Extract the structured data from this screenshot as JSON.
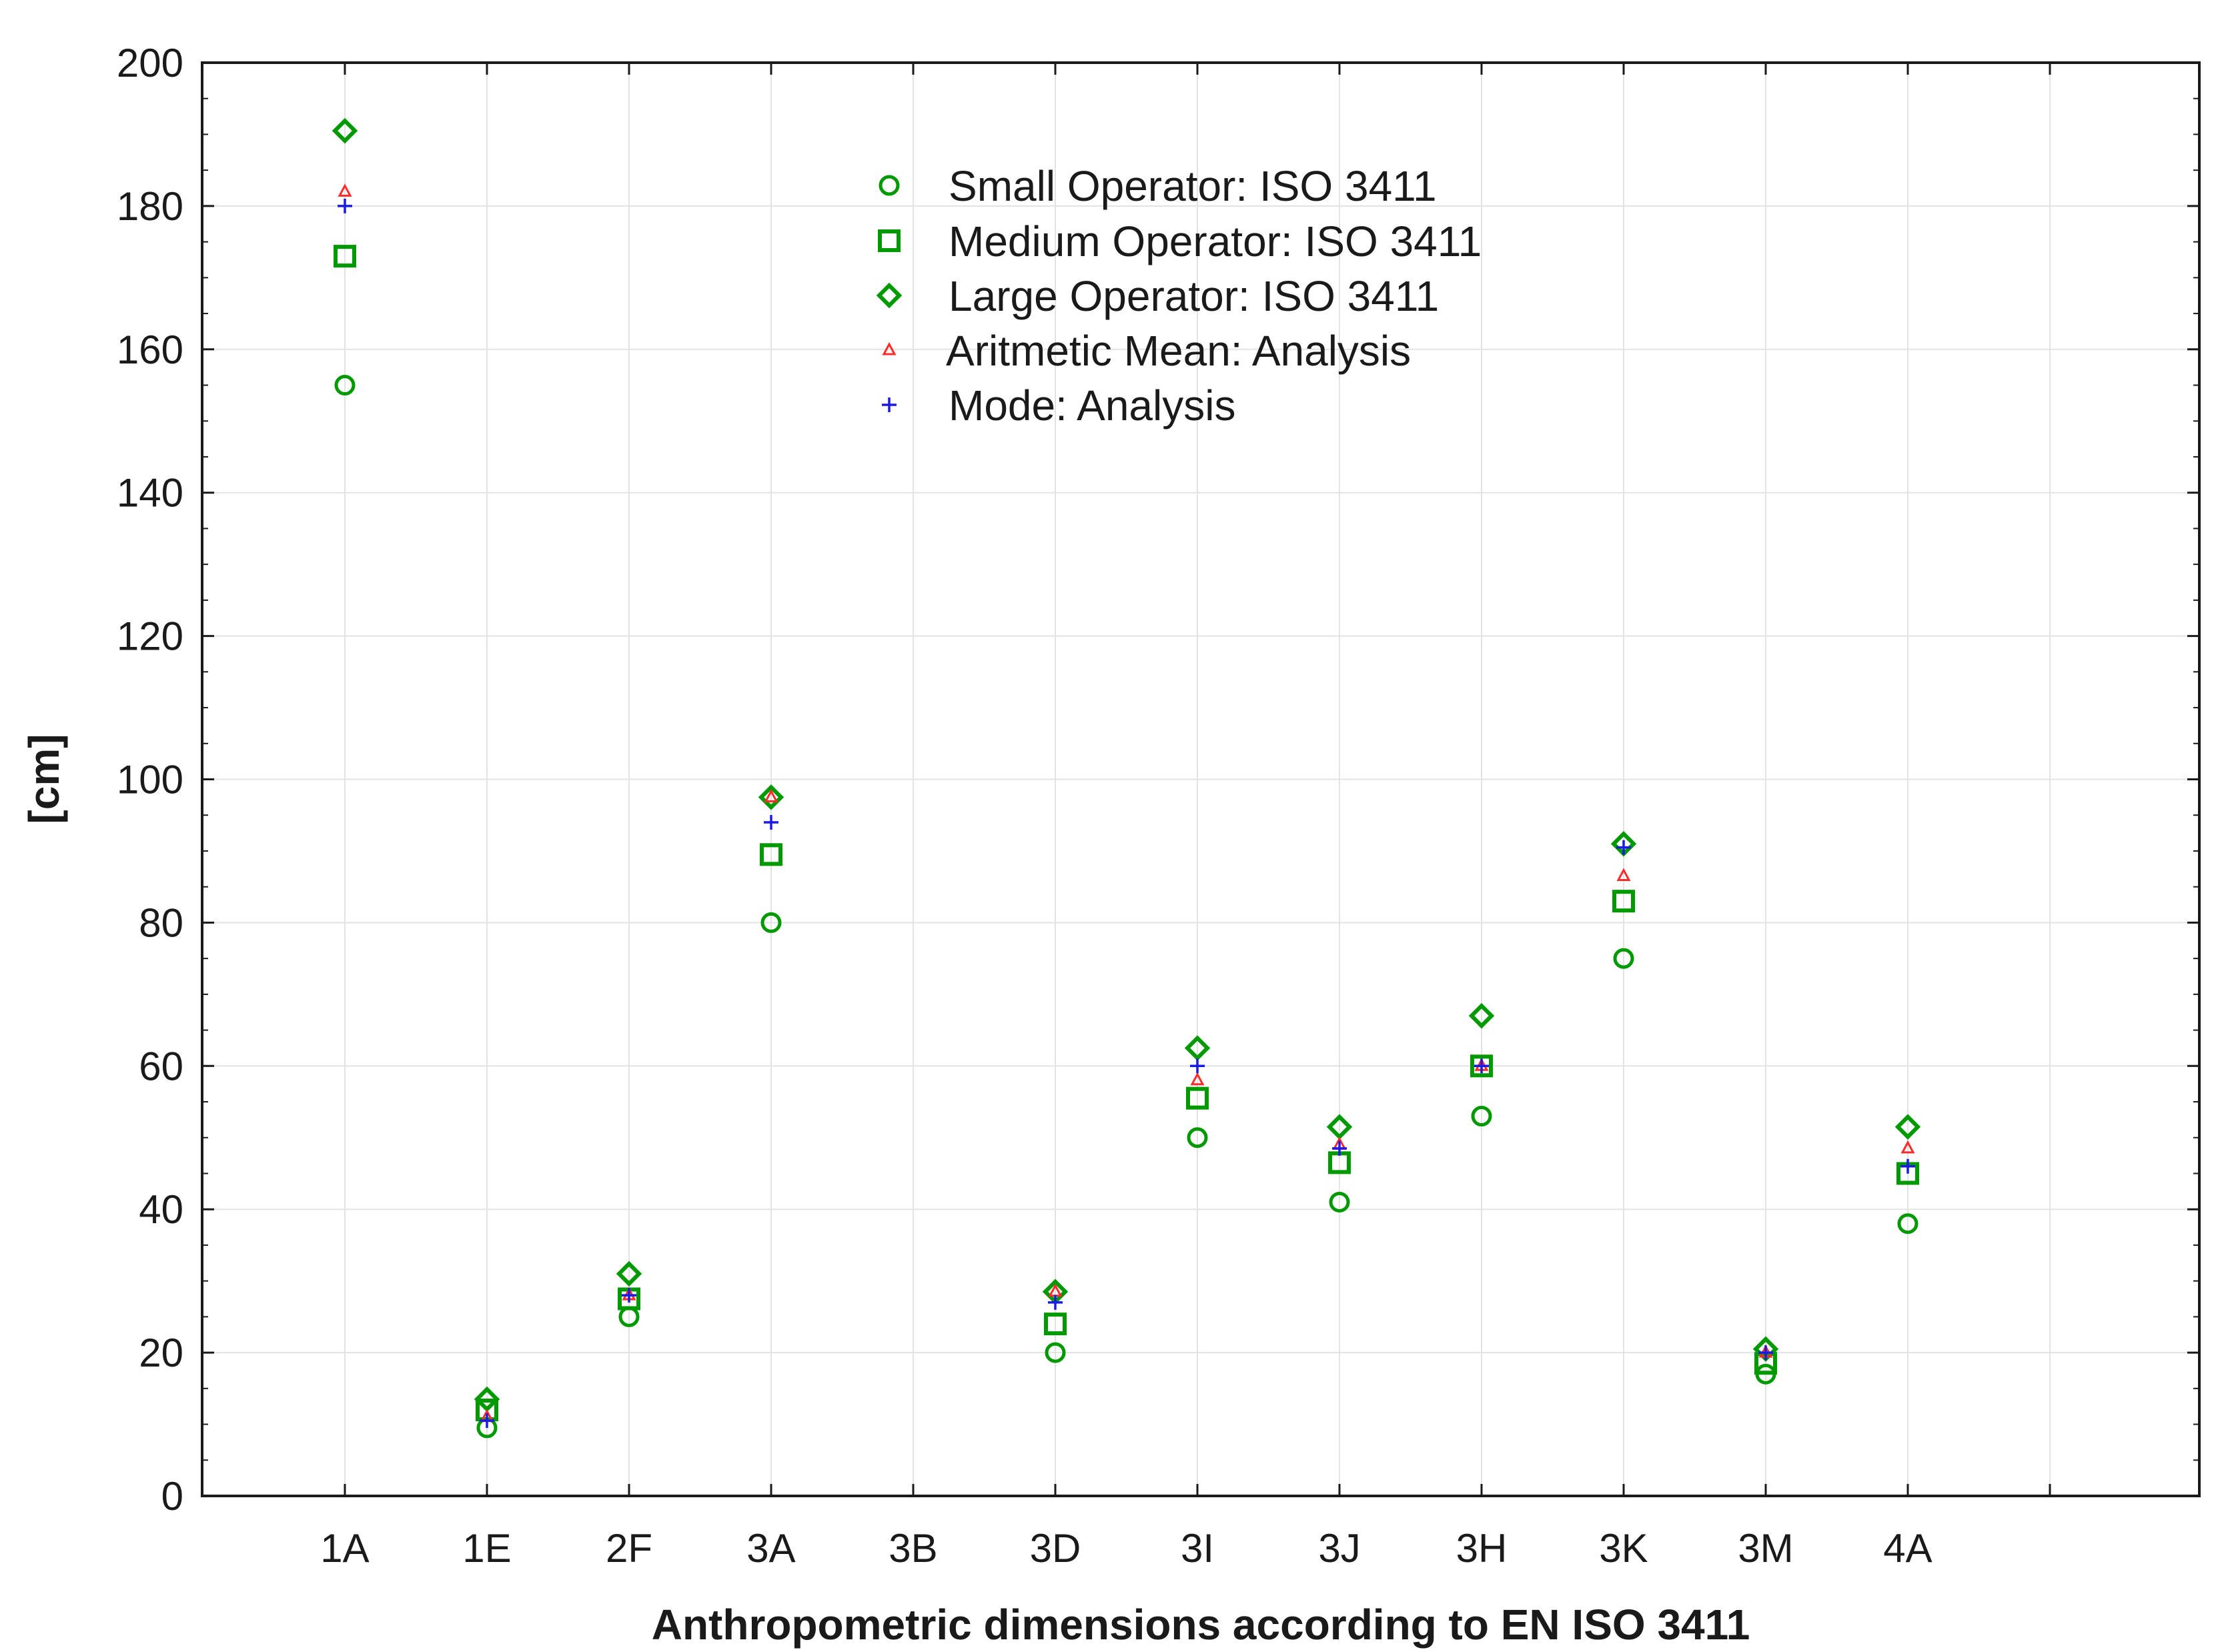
{
  "chart_data": {
    "type": "scatter",
    "title": "",
    "xlabel": "Anthropometric dimensions according to EN ISO 3411",
    "ylabel": "[cm]",
    "ylim": [
      0,
      200
    ],
    "yticks": [
      0,
      20,
      40,
      60,
      80,
      100,
      120,
      140,
      160,
      180,
      200
    ],
    "categories": [
      "1A",
      "1E",
      "2F",
      "3A",
      "3B",
      "3D",
      "3I",
      "3J",
      "3H",
      "3K",
      "3M",
      "4A"
    ],
    "grid": true,
    "legend_position": "top-center",
    "series": [
      {
        "name": "Small Operator: ISO 3411",
        "marker": "circle",
        "color": "#009a00",
        "values": [
          155,
          9.5,
          25,
          80,
          null,
          20,
          50,
          41,
          53,
          75,
          17,
          38
        ]
      },
      {
        "name": "Medium Operator: ISO 3411",
        "marker": "square",
        "color": "#009a00",
        "values": [
          173,
          12,
          27.5,
          89.5,
          null,
          24,
          55.5,
          46.5,
          60,
          83,
          18.5,
          45
        ]
      },
      {
        "name": "Large Operator: ISO 3411",
        "marker": "diamond",
        "color": "#009a00",
        "values": [
          190.5,
          13.5,
          31,
          97.5,
          null,
          28.5,
          62.5,
          51.5,
          67,
          91,
          20.5,
          51.5
        ]
      },
      {
        "name": "Aritmetic Mean: Analysis",
        "marker": "triangle",
        "color": "#ff2a2a",
        "values": [
          182,
          11,
          28,
          97.5,
          null,
          28.5,
          58,
          49,
          60,
          86.5,
          20,
          48.5
        ]
      },
      {
        "name": "Mode: Analysis",
        "marker": "plus",
        "color": "#1a1ae6",
        "values": [
          180,
          10.5,
          28,
          94,
          null,
          27,
          60,
          48.5,
          60,
          90.5,
          20,
          46
        ]
      }
    ]
  }
}
